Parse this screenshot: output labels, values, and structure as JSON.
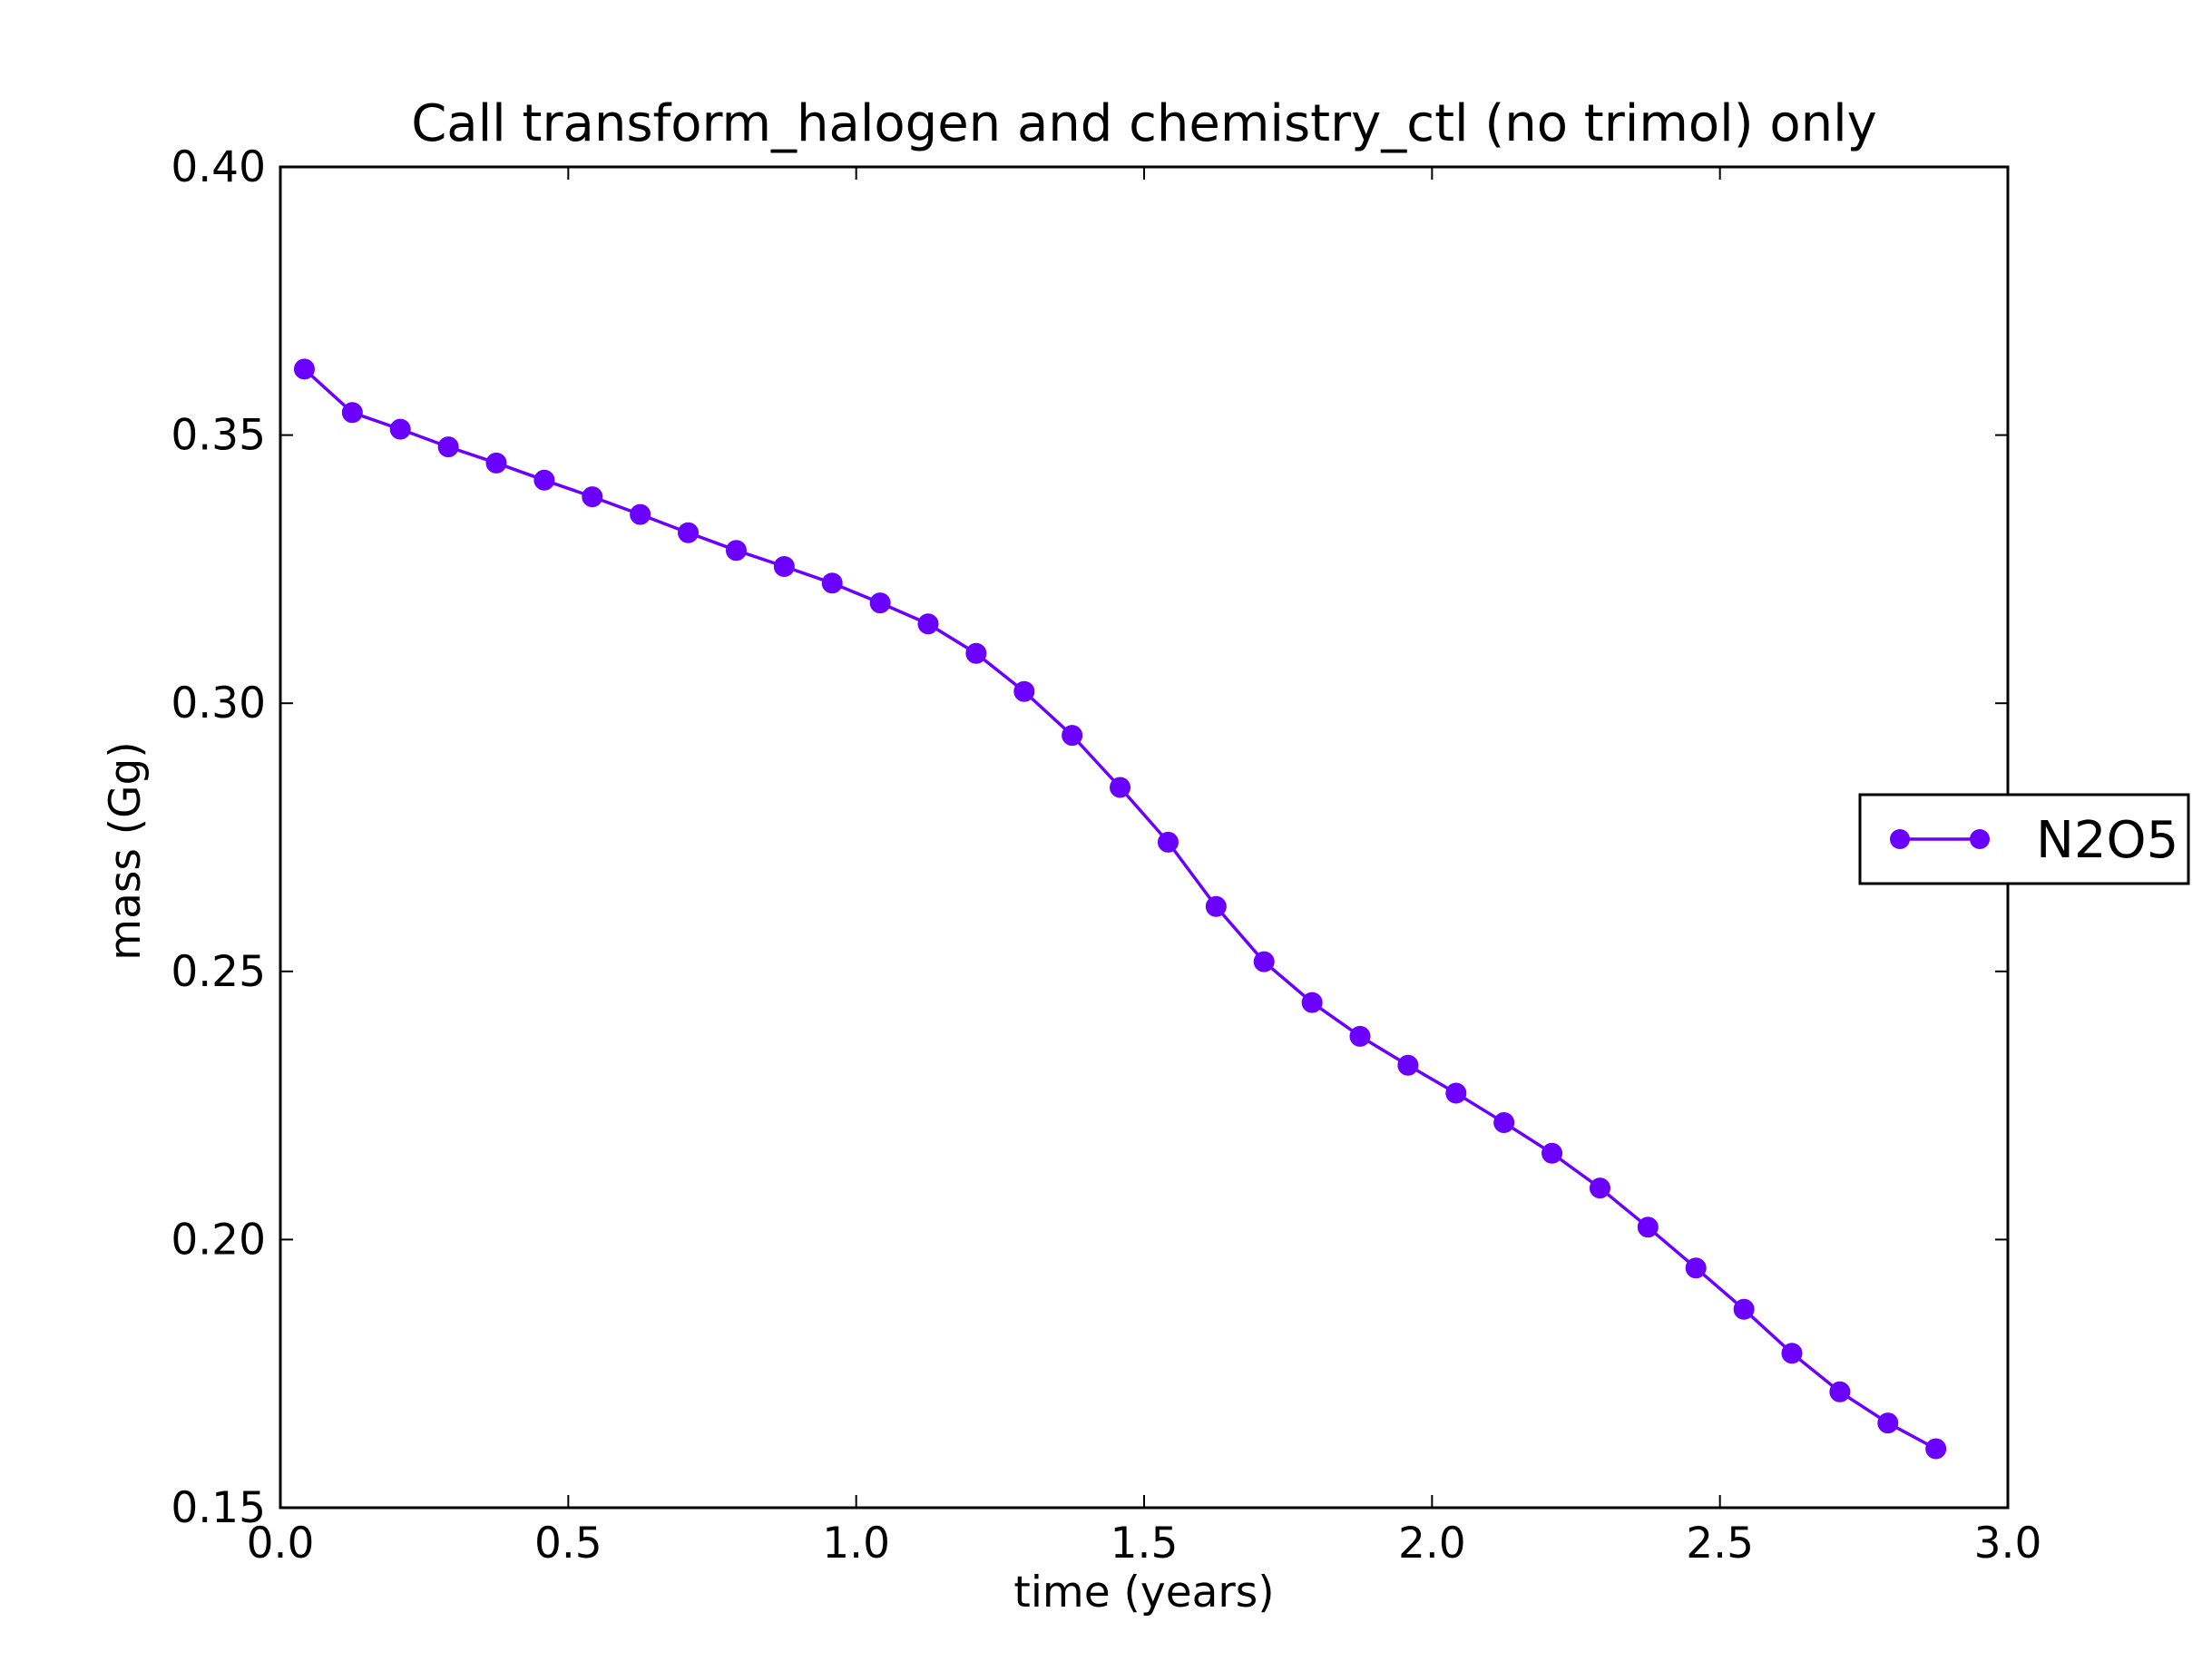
{
  "chart_data": {
    "type": "line",
    "title": "Call transform_halogen and chemistry_ctl (no trimol) only",
    "xlabel": "time (years)",
    "ylabel": "mass (Gg)",
    "xlim": [
      0.0,
      3.0
    ],
    "ylim": [
      0.15,
      0.4
    ],
    "xticks": [
      "0.0",
      "0.5",
      "1.0",
      "1.5",
      "2.0",
      "2.5",
      "3.0"
    ],
    "yticks": [
      "0.15",
      "0.20",
      "0.25",
      "0.30",
      "0.35",
      "0.40"
    ],
    "grid": false,
    "legend_position": "outside right",
    "series": [
      {
        "name": "N2O5",
        "color": "#6a00ff",
        "marker": "circle",
        "x": [
          0.0417,
          0.125,
          0.2083,
          0.2917,
          0.375,
          0.4583,
          0.5417,
          0.625,
          0.7083,
          0.7917,
          0.875,
          0.9583,
          1.0417,
          1.125,
          1.2083,
          1.2917,
          1.375,
          1.4583,
          1.5417,
          1.625,
          1.7083,
          1.7917,
          1.875,
          1.9583,
          2.0417,
          2.125,
          2.2083,
          2.2917,
          2.375,
          2.4583,
          2.5417,
          2.625,
          2.7083,
          2.7917,
          2.875
        ],
        "values": [
          0.3623,
          0.3542,
          0.3511,
          0.3478,
          0.3448,
          0.3416,
          0.3385,
          0.3352,
          0.3318,
          0.3285,
          0.3255,
          0.3224,
          0.3187,
          0.3148,
          0.3093,
          0.3022,
          0.294,
          0.2843,
          0.2741,
          0.2621,
          0.2518,
          0.2442,
          0.2379,
          0.2325,
          0.2273,
          0.2218,
          0.2161,
          0.2096,
          0.2023,
          0.1947,
          0.187,
          0.1788,
          0.1716,
          0.1658,
          0.161
        ]
      }
    ]
  }
}
